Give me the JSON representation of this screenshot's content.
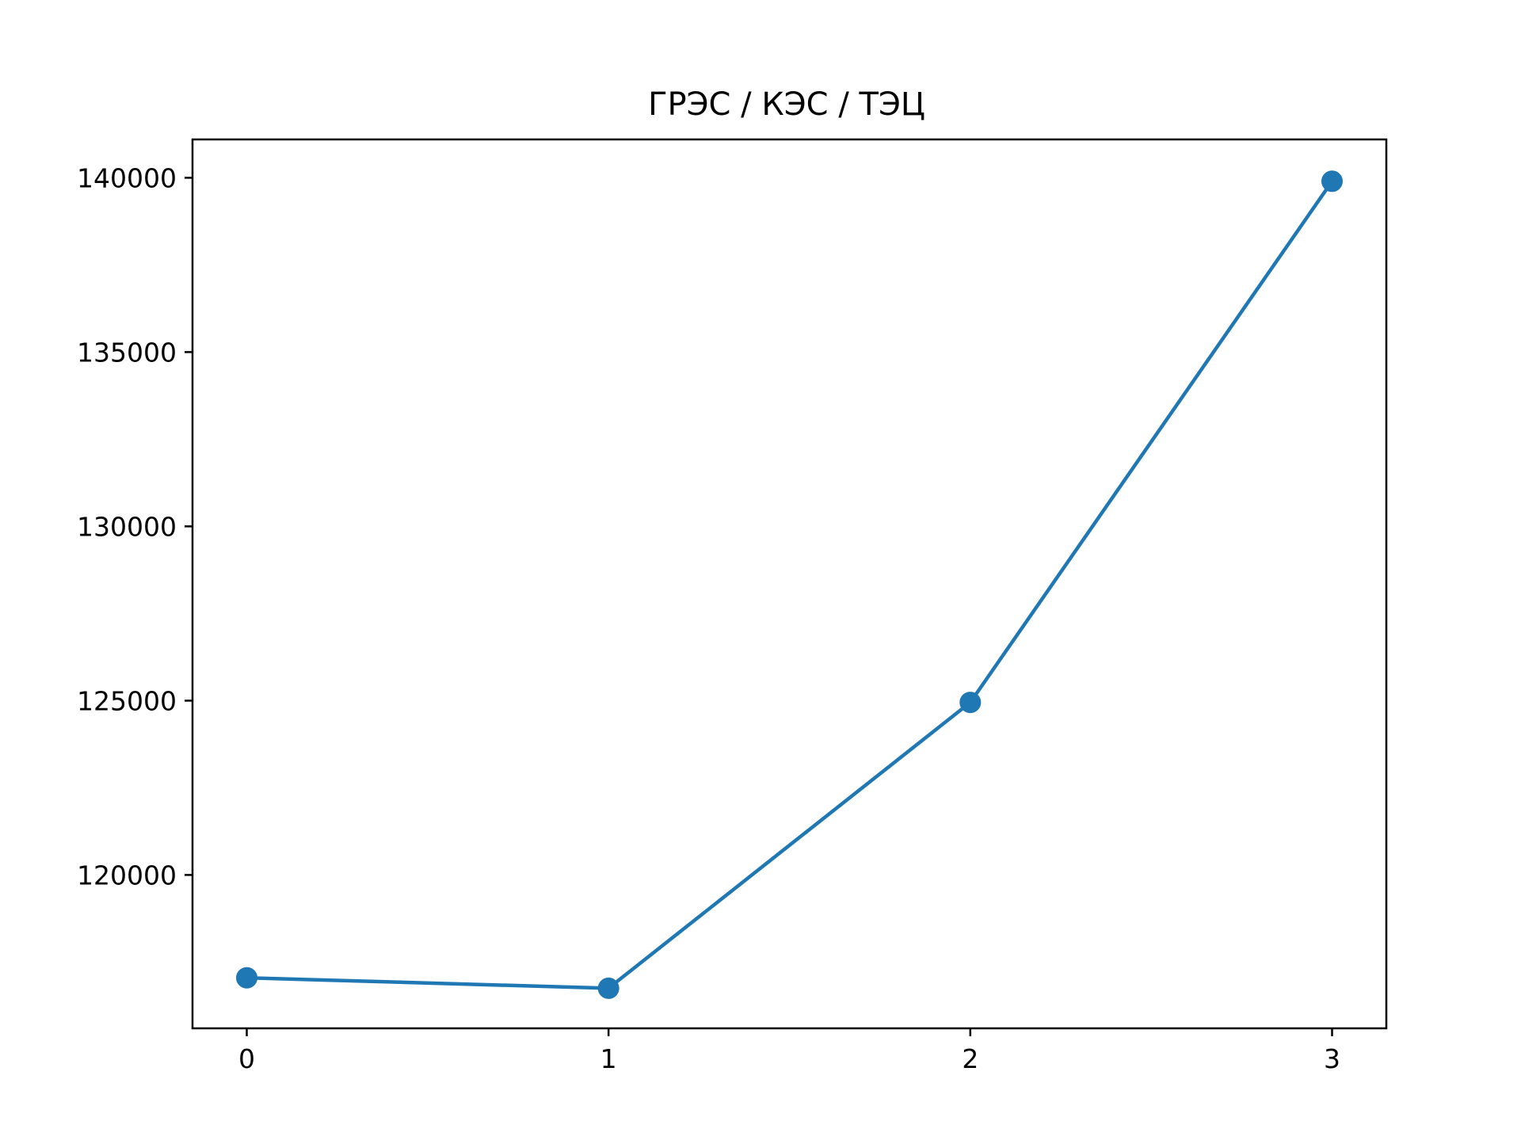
{
  "chart_data": {
    "type": "line",
    "title": "ГРЭС / КЭС / ТЭЦ",
    "xlabel": "",
    "ylabel": "",
    "x": [
      0,
      1,
      2,
      3
    ],
    "series": [
      {
        "values": [
          117050,
          116750,
          124950,
          139900
        ],
        "color": "#1f77b4",
        "marker": "circle"
      }
    ],
    "x_ticks": [
      0,
      1,
      2,
      3
    ],
    "x_tick_labels": [
      "0",
      "1",
      "2",
      "3"
    ],
    "y_ticks": [
      120000,
      125000,
      130000,
      135000,
      140000
    ],
    "y_tick_labels": [
      "120000",
      "125000",
      "130000",
      "135000",
      "140000"
    ],
    "xlim": [
      -0.15,
      3.15
    ],
    "ylim": [
      115600,
      141100
    ],
    "grid": false,
    "legend": "none"
  }
}
